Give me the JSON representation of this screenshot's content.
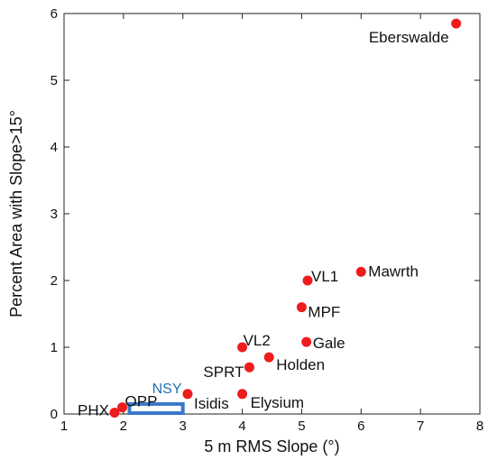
{
  "chart_data": {
    "type": "scatter",
    "title": "",
    "xlabel": "5 m RMS Slope (°)",
    "ylabel": "Percent Area with Slope>15°",
    "xlim": [
      1,
      8
    ],
    "ylim": [
      0,
      6
    ],
    "xticks": [
      1,
      2,
      3,
      4,
      5,
      6,
      7,
      8
    ],
    "yticks": [
      0,
      1,
      2,
      3,
      4,
      5,
      6
    ],
    "point_color": "#ee1c1c",
    "box_color": "#3a78c9",
    "points": [
      {
        "label": "Eberswalde",
        "x": 7.6,
        "y": 5.85
      },
      {
        "label": "Mawrth",
        "x": 6.0,
        "y": 2.13
      },
      {
        "label": "VL1",
        "x": 5.1,
        "y": 2.0
      },
      {
        "label": "MPF",
        "x": 5.0,
        "y": 1.6
      },
      {
        "label": "Gale",
        "x": 5.08,
        "y": 1.08
      },
      {
        "label": "VL2",
        "x": 4.0,
        "y": 1.0
      },
      {
        "label": "Holden",
        "x": 4.45,
        "y": 0.85
      },
      {
        "label": "SPRT",
        "x": 4.12,
        "y": 0.7
      },
      {
        "label": "Isidis",
        "x": 3.08,
        "y": 0.3
      },
      {
        "label": "Elysium",
        "x": 4.0,
        "y": 0.3
      },
      {
        "label": "OPP",
        "x": 1.98,
        "y": 0.1
      },
      {
        "label": "PHX",
        "x": 1.85,
        "y": 0.02
      }
    ],
    "region": {
      "label": "NSY",
      "x": [
        2.1,
        3.0
      ],
      "y": [
        0.0,
        0.15
      ]
    }
  }
}
